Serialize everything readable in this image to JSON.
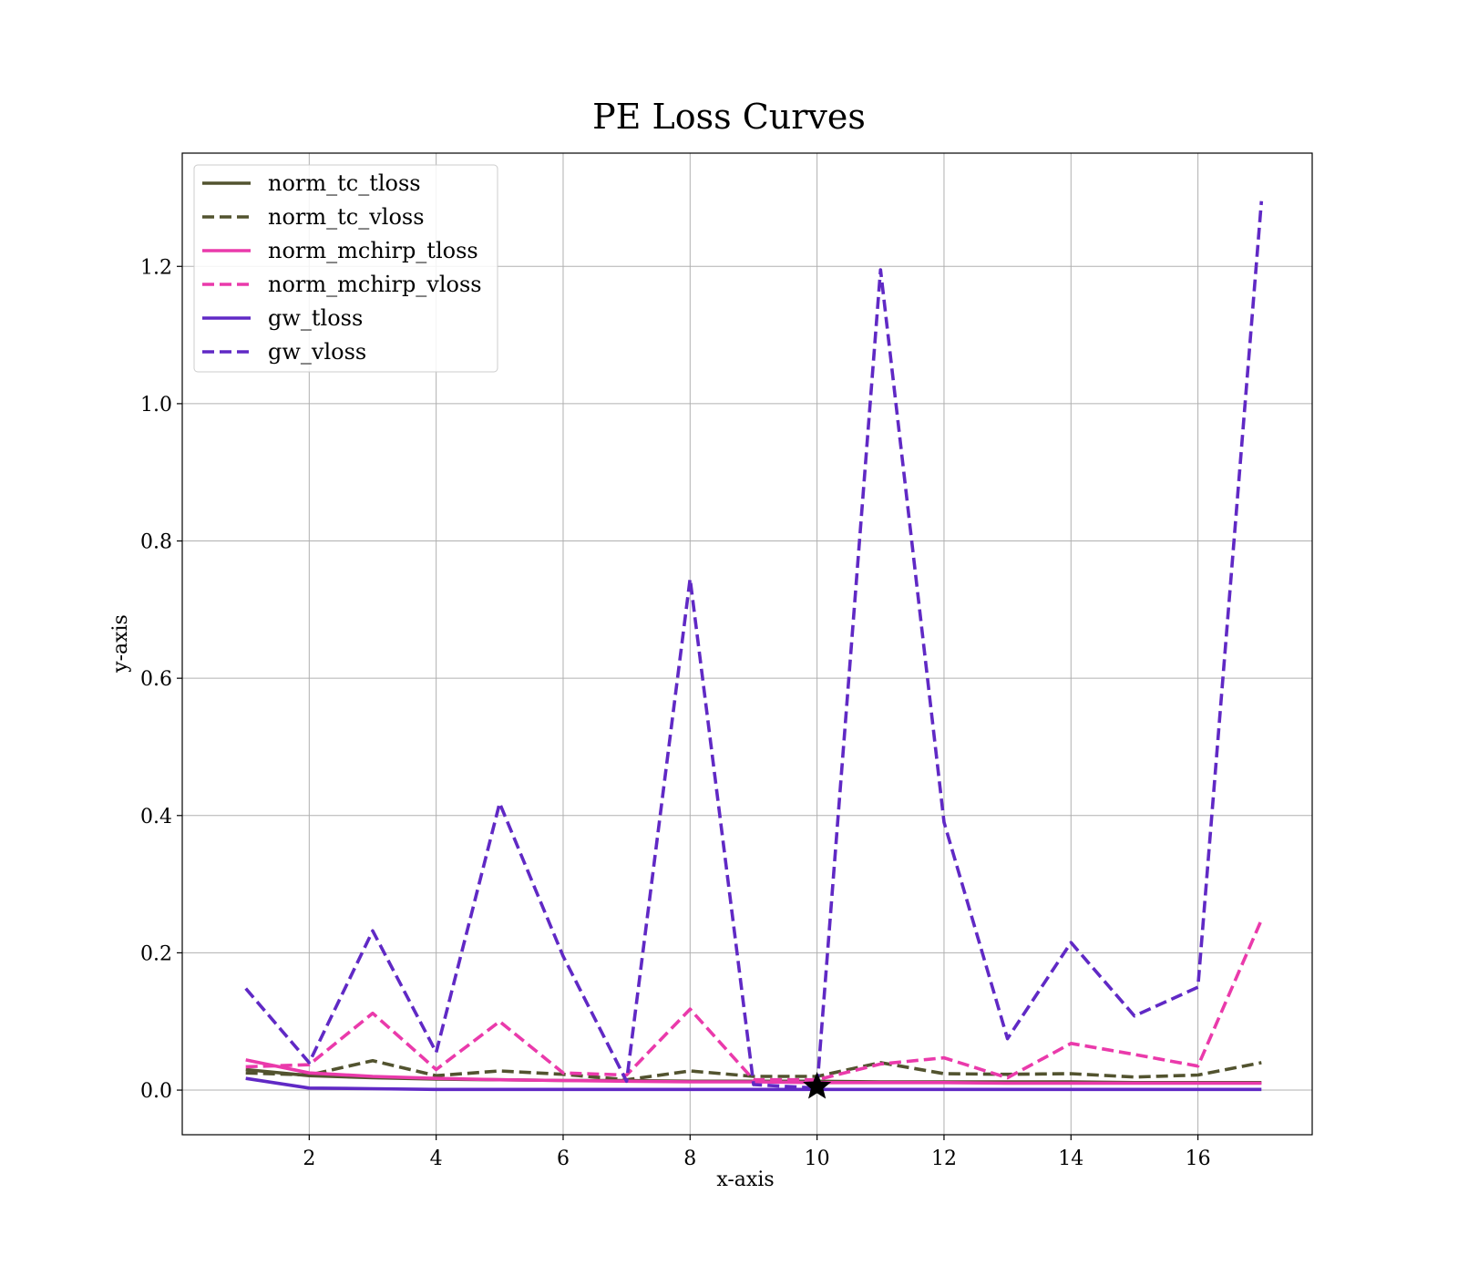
{
  "chart_data": {
    "type": "line",
    "title": "PE Loss Curves",
    "xlabel": "x-axis",
    "ylabel": "y-axis",
    "xlim": [
      0.0,
      17.8
    ],
    "ylim": [
      -0.065,
      1.365
    ],
    "xticks": [
      2,
      4,
      6,
      8,
      10,
      12,
      14,
      16
    ],
    "yticks": [
      0.0,
      0.2,
      0.4,
      0.6,
      0.8,
      1.0,
      1.2
    ],
    "grid": true,
    "legend_position": "top-left",
    "x": [
      1,
      2,
      3,
      4,
      5,
      6,
      7,
      8,
      9,
      10,
      11,
      12,
      13,
      14,
      15,
      16,
      17
    ],
    "series": [
      {
        "name": "norm_tc_tloss",
        "color": "#52532f",
        "style": "solid",
        "values": [
          0.03,
          0.021,
          0.018,
          0.016,
          0.015,
          0.014,
          0.014,
          0.013,
          0.013,
          0.013,
          0.012,
          0.012,
          0.012,
          0.012,
          0.011,
          0.011,
          0.011
        ]
      },
      {
        "name": "norm_tc_vloss",
        "color": "#52532f",
        "style": "dashed",
        "values": [
          0.025,
          0.022,
          0.043,
          0.021,
          0.028,
          0.023,
          0.015,
          0.028,
          0.02,
          0.02,
          0.04,
          0.024,
          0.023,
          0.024,
          0.019,
          0.022,
          0.04
        ]
      },
      {
        "name": "norm_mchirp_tloss",
        "color": "#ea3aab",
        "style": "solid",
        "values": [
          0.044,
          0.025,
          0.02,
          0.017,
          0.015,
          0.014,
          0.013,
          0.012,
          0.012,
          0.011,
          0.011,
          0.011,
          0.01,
          0.01,
          0.01,
          0.01,
          0.01
        ]
      },
      {
        "name": "norm_mchirp_vloss",
        "color": "#ea3aab",
        "style": "dashed",
        "values": [
          0.034,
          0.037,
          0.112,
          0.03,
          0.1,
          0.025,
          0.022,
          0.118,
          0.015,
          0.015,
          0.038,
          0.047,
          0.018,
          0.068,
          0.052,
          0.035,
          0.248
        ]
      },
      {
        "name": "gw_tloss",
        "color": "#6029c5",
        "style": "solid",
        "values": [
          0.017,
          0.003,
          0.002,
          0.001,
          0.001,
          0.001,
          0.001,
          0.001,
          0.001,
          0.001,
          0.001,
          0.001,
          0.001,
          0.001,
          0.001,
          0.001,
          0.001
        ]
      },
      {
        "name": "gw_vloss",
        "color": "#6029c5",
        "style": "dashed",
        "values": [
          0.148,
          0.04,
          0.232,
          0.055,
          0.418,
          0.195,
          0.013,
          0.745,
          0.008,
          0.003,
          1.195,
          0.39,
          0.075,
          0.215,
          0.108,
          0.15,
          1.295
        ]
      }
    ],
    "annotations": [
      {
        "type": "star-marker",
        "x": 10,
        "y": 0.005,
        "color": "#000000"
      }
    ]
  }
}
